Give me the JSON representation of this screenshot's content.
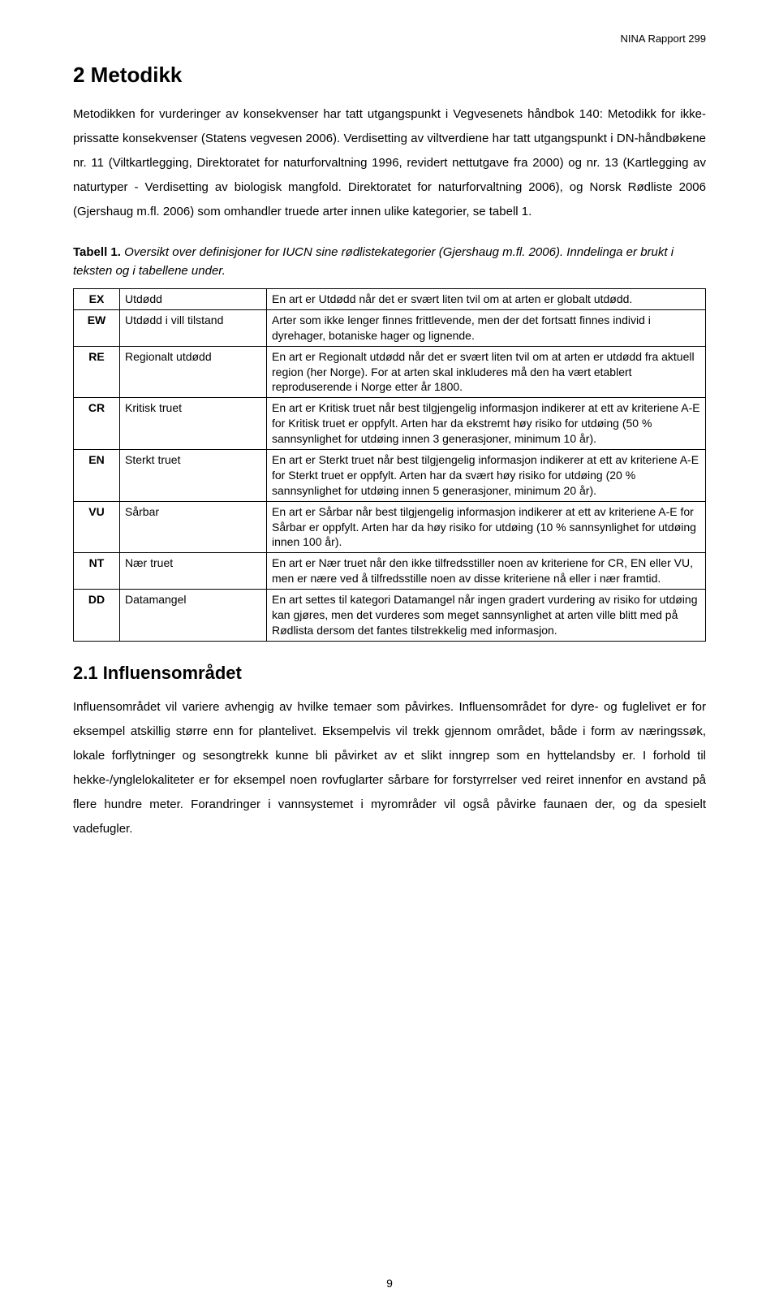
{
  "header": {
    "report": "NINA Rapport 299"
  },
  "section": {
    "title": "2 Metodikk",
    "paragraph1": "Metodikken for vurderinger av konsekvenser har tatt utgangspunkt i Vegvesenets håndbok 140: Metodikk for ikke-prissatte konsekvenser (Statens vegvesen 2006). Verdisetting av viltverdiene har tatt utgangspunkt i DN-håndbøkene nr. 11 (Viltkartlegging, Direktoratet for naturforvaltning 1996, revidert nettutgave fra 2000) og nr. 13 (Kartlegging av naturtyper - Verdisetting av biologisk mangfold. Direktoratet for naturforvaltning 2006), og Norsk Rødliste 2006 (Gjershaug m.fl. 2006) som omhandler truede arter innen ulike kategorier, se tabell 1."
  },
  "table": {
    "caption_lead": "Tabell 1.",
    "caption_rest": " Oversikt over definisjoner for IUCN sine rødlistekategorier (Gjershaug m.fl. 2006). Inndelinga er brukt i teksten og i tabellene under.",
    "rows": [
      {
        "code": "EX",
        "term": "Utdødd",
        "desc": "En art er Utdødd når det er svært liten tvil om at arten er globalt utdødd."
      },
      {
        "code": "EW",
        "term": "Utdødd i vill tilstand",
        "desc": "Arter som ikke lenger finnes frittlevende, men der det fortsatt finnes individ i dyrehager, botaniske hager og lignende."
      },
      {
        "code": "RE",
        "term": "Regionalt utdødd",
        "desc": "En art er Regionalt utdødd når det er svært liten tvil om at arten er utdødd fra aktuell region (her Norge). For at arten skal inkluderes må den ha vært etablert reproduserende i Norge etter år 1800."
      },
      {
        "code": "CR",
        "term": "Kritisk truet",
        "desc": "En art er Kritisk truet når best tilgjengelig informasjon indikerer at ett av kriteriene A-E for Kritisk truet er oppfylt. Arten har da ekstremt høy risiko for utdøing (50 % sannsynlighet for utdøing innen 3 generasjoner, minimum 10 år)."
      },
      {
        "code": "EN",
        "term": "Sterkt truet",
        "desc": "En art er Sterkt truet når best tilgjengelig informasjon indikerer at ett av kriteriene A-E for Sterkt truet er oppfylt. Arten har da svært høy risiko for utdøing (20 % sannsynlighet for utdøing innen 5 generasjoner, minimum 20 år)."
      },
      {
        "code": "VU",
        "term": "Sårbar",
        "desc": "En art er Sårbar når best tilgjengelig informasjon indikerer at ett av kriteriene A-E for Sårbar er oppfylt. Arten har da høy risiko for utdøing (10 % sannsynlighet for utdøing innen 100 år)."
      },
      {
        "code": "NT",
        "term": "Nær truet",
        "desc": "En art er Nær truet når den ikke tilfredsstiller noen av kriteriene for CR, EN eller VU, men er nære ved å tilfredsstille noen av disse kriteriene nå eller i nær framtid."
      },
      {
        "code": "DD",
        "term": "Datamangel",
        "desc": "En art settes til kategori Datamangel når ingen gradert vurdering av risiko for utdøing kan gjøres, men det vurderes som meget sannsynlighet at arten ville blitt med på Rødlista dersom det fantes tilstrekkelig med informasjon."
      }
    ]
  },
  "subsection": {
    "title": "2.1 Influensområdet",
    "paragraph": "Influensområdet vil variere avhengig av hvilke temaer som påvirkes. Influensområdet for dyre- og fuglelivet er for eksempel atskillig større enn for plantelivet. Eksempelvis vil trekk gjennom området, både i form av næringssøk, lokale forflytninger og sesongtrekk kunne bli påvirket av et slikt inngrep som en hyttelandsby er.  I forhold til hekke-/ynglelokaliteter er for eksempel noen rovfuglarter sårbare for forstyrrelser ved reiret innenfor en avstand på flere hundre meter. Forandringer i vannsystemet i myrområder vil også påvirke faunaen der, og da spesielt vadefugler."
  },
  "page_number": "9"
}
